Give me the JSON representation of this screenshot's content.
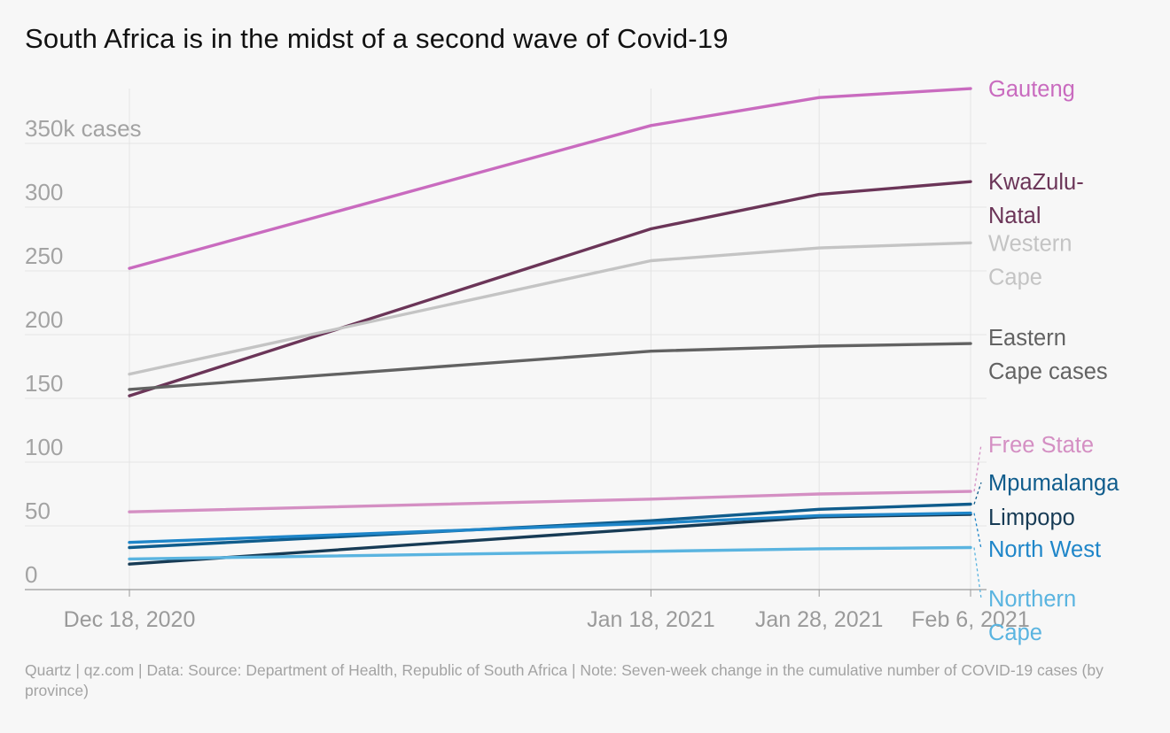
{
  "title": "South Africa is in the midst of a second wave of Covid-19",
  "footnote": "Quartz | qz.com | Data: Source: Department of Health, Republic of South Africa | Note: Seven-week change in the cumulative number of COVID-19 cases (by province)",
  "chart_data": {
    "type": "line",
    "x": [
      "2020-12-18",
      "2021-01-18",
      "2021-01-28",
      "2021-02-06"
    ],
    "x_tick_labels": [
      "Dec 18, 2020",
      "Jan 18, 2021",
      "Jan 28, 2021",
      "Feb 6, 2021"
    ],
    "ylim": [
      0,
      400
    ],
    "y_ticks": [
      0,
      50,
      100,
      150,
      200,
      250,
      300,
      350
    ],
    "y_tick_labels": [
      "0",
      "50",
      "100",
      "150",
      "200",
      "250",
      "300",
      "350k cases"
    ],
    "grid": true,
    "legend": "direct labels at line ends",
    "series": [
      {
        "name": "Gauteng",
        "label_lines": [
          "Gauteng"
        ],
        "color": "#c96bbf",
        "values": [
          252,
          364,
          386,
          393
        ],
        "label_y": 393
      },
      {
        "name": "KwaZulu-Natal",
        "label_lines": [
          "KwaZulu-",
          "Natal"
        ],
        "color": "#6b3558",
        "values": [
          152,
          283,
          310,
          320
        ],
        "label_y": 320
      },
      {
        "name": "Western Cape",
        "label_lines": [
          "Western",
          "Cape"
        ],
        "color": "#c4c4c4",
        "values": [
          169,
          258,
          268,
          272
        ],
        "label_y": 272
      },
      {
        "name": "Eastern Cape cases",
        "label_lines": [
          "Eastern",
          "Cape cases"
        ],
        "color": "#626262",
        "values": [
          157,
          187,
          191,
          193
        ],
        "label_y": 198
      },
      {
        "name": "Free State",
        "label_lines": [
          "Free State"
        ],
        "color": "#d48fc3",
        "values": [
          61,
          71,
          75,
          77
        ],
        "label_y": 114
      },
      {
        "name": "Mpumalanga",
        "label_lines": [
          "Mpumalanga"
        ],
        "color": "#0f5c8c",
        "values": [
          33,
          54,
          63,
          67
        ],
        "label_y": 84
      },
      {
        "name": "Limpopo",
        "label_lines": [
          "Limpopo"
        ],
        "color": "#173b55",
        "values": [
          20,
          48,
          57,
          59
        ],
        "label_y": 57
      },
      {
        "name": "North West",
        "label_lines": [
          "North West"
        ],
        "color": "#1f86c9",
        "values": [
          37,
          52,
          58,
          60
        ],
        "label_y": 32
      },
      {
        "name": "Northern Cape",
        "label_lines": [
          "Northern",
          "Cape"
        ],
        "color": "#5ab4e0",
        "values": [
          24,
          30,
          32,
          33
        ],
        "label_y": -7
      }
    ]
  }
}
